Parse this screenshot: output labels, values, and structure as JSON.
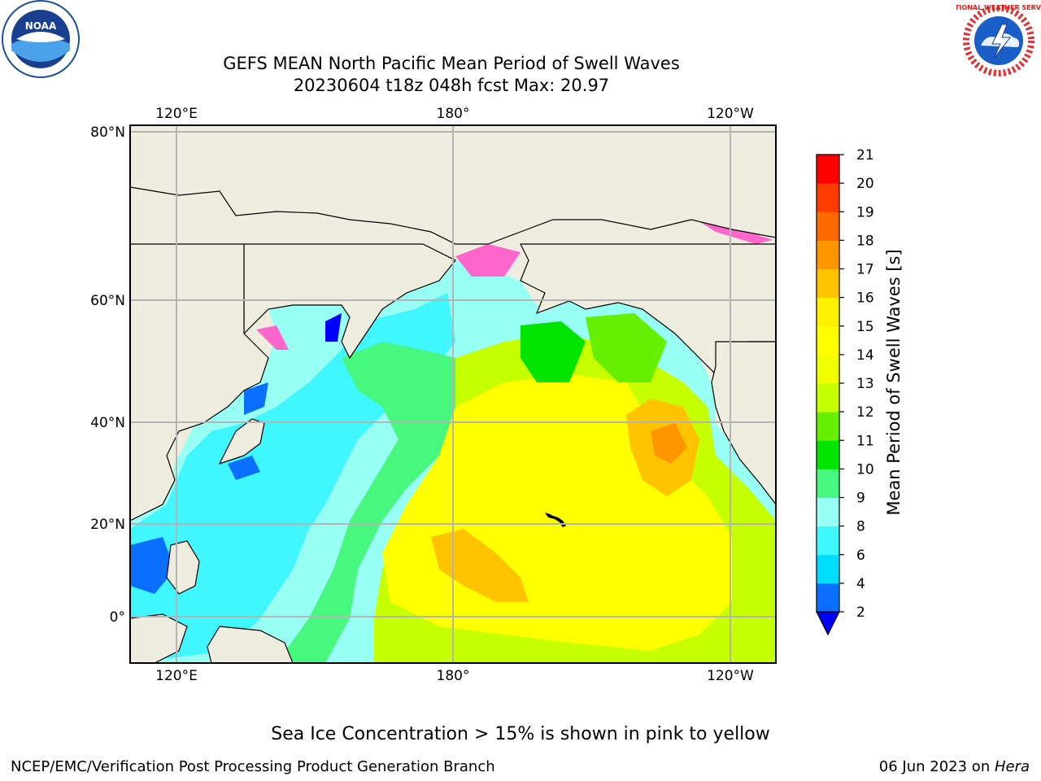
{
  "title_line1": "GEFS MEAN North Pacific Mean Period of Swell Waves",
  "title_line2": "20230604 t18z 048h fcst   Max: 20.97",
  "map": {
    "top_lon_labels": [
      "120°E",
      "180°",
      "120°W"
    ],
    "bottom_lon_labels": [
      "120°E",
      "180°",
      "120°W"
    ],
    "lat_labels": [
      "80°N",
      "60°N",
      "40°N",
      "20°N",
      "0°"
    ]
  },
  "colorbar": {
    "label": "Mean Period of Swell Waves [s]",
    "ticks": [
      "2",
      "4",
      "6",
      "8",
      "9",
      "10",
      "11",
      "12",
      "13",
      "14",
      "15",
      "16",
      "17",
      "18",
      "19",
      "20",
      "21"
    ],
    "colors": [
      "#0a6eff",
      "#00ddff",
      "#40f6ff",
      "#98fff4",
      "#48f77e",
      "#00e400",
      "#66f000",
      "#c6ff00",
      "#f2ff00",
      "#ffff00",
      "#fff200",
      "#ffc300",
      "#ff9600",
      "#ff6900",
      "#ff3c00",
      "#ff0000"
    ],
    "under_color": "#0000ff"
  },
  "note": "Sea Ice Concentration > 15% is shown in pink to yellow",
  "footer_left": "NCEP/EMC/Verification Post Processing Product Generation Branch",
  "footer_right_date": "06 Jun 2023 on ",
  "footer_right_host": "Hera",
  "logos": {
    "left": "NOAA",
    "right": "NATIONAL WEATHER SERVICE"
  }
}
